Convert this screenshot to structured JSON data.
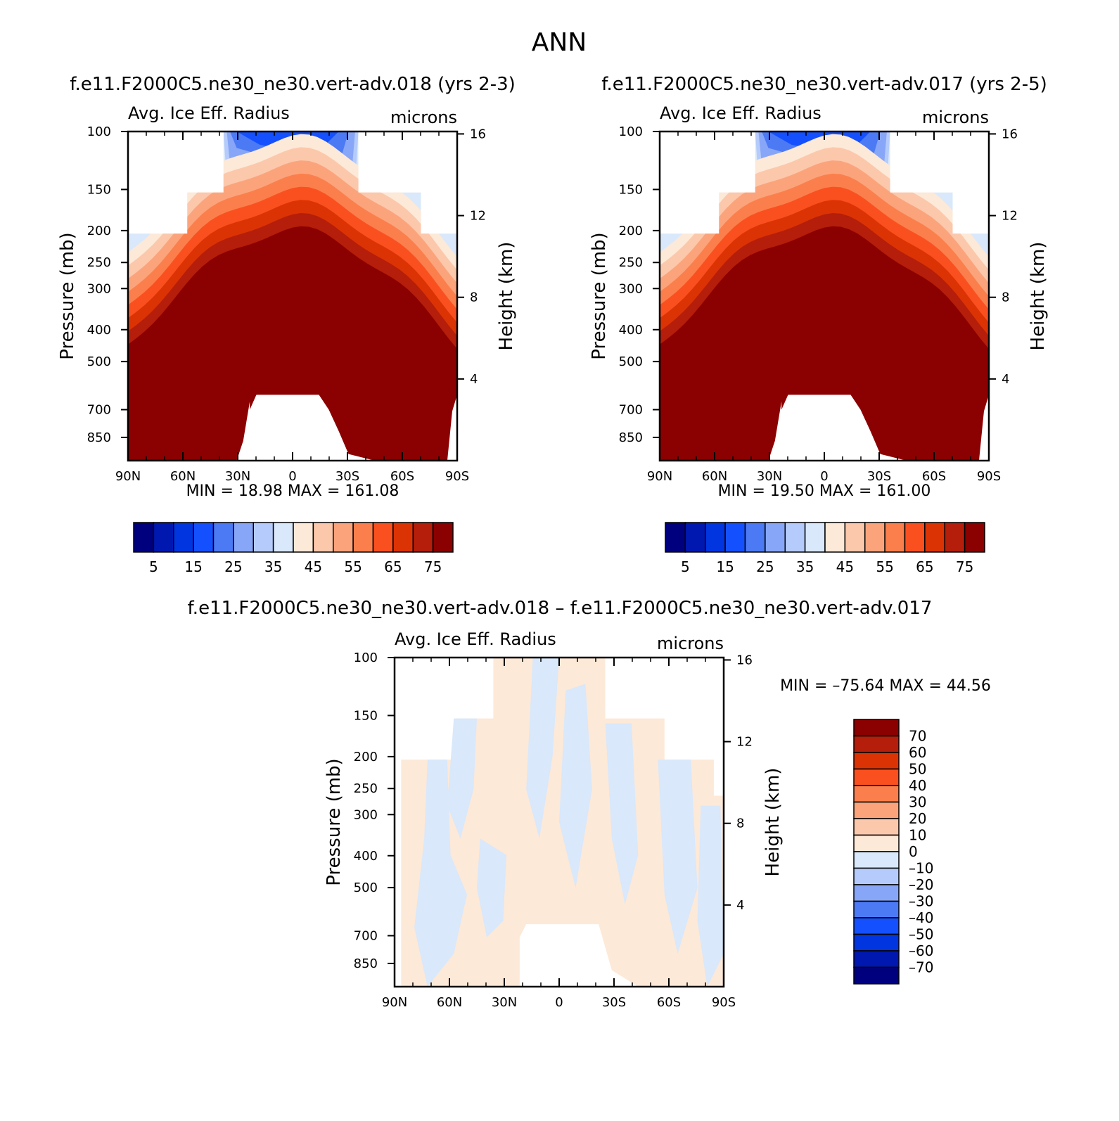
{
  "figure": {
    "title": "ANN"
  },
  "colors": {
    "seq": [
      "#00007f",
      "#0018b0",
      "#0035e0",
      "#1550ff",
      "#4c7af5",
      "#88a6f7",
      "#b5cbfb",
      "#d9e8fb",
      "#fde9d7",
      "#fcc8ab",
      "#fba47c",
      "#fb7f4c",
      "#fa5020",
      "#dc3305",
      "#b41e0a",
      "#8b0000"
    ],
    "diff": [
      "#00007f",
      "#0018b0",
      "#0035e0",
      "#1550ff",
      "#4c7af5",
      "#88a6f7",
      "#b5cbfb",
      "#d9e8fb",
      "#fde9d7",
      "#fcc8ab",
      "#fba47c",
      "#fb7f4c",
      "#fa5020",
      "#dc3305",
      "#b41e0a",
      "#8b0000"
    ]
  },
  "chart_data": [
    {
      "type": "heatmap",
      "title": "f.e11.F2000C5.ne30_ne30.vert-adv.018 (yrs 2-3)",
      "left_label": "Avg. Ice Eff. Radius",
      "right_label": "microns",
      "ylabel": "Pressure (mb)",
      "y2label": "Height (km)",
      "xticks": [
        "90N",
        "60N",
        "30N",
        "0",
        "30S",
        "60S",
        "90S"
      ],
      "yticks": [
        "100",
        "150",
        "200",
        "250",
        "300",
        "400",
        "500",
        "700",
        "850"
      ],
      "y2ticks": [
        "16",
        "12",
        "8",
        "4"
      ],
      "ylim": [
        100,
        1000
      ],
      "log_scale": true,
      "stats_text": "MIN =   18.98   MAX = 161.08",
      "min": 18.98,
      "max": 161.08,
      "colorbar": {
        "labels": [
          "5",
          "15",
          "25",
          "35",
          "45",
          "55",
          "65",
          "75"
        ],
        "levels": [
          5,
          10,
          15,
          20,
          25,
          30,
          35,
          40,
          45,
          50,
          55,
          60,
          65,
          70,
          75
        ]
      }
    },
    {
      "type": "heatmap",
      "title": "f.e11.F2000C5.ne30_ne30.vert-adv.017 (yrs 2-5)",
      "left_label": "Avg. Ice Eff. Radius",
      "right_label": "microns",
      "ylabel": "Pressure (mb)",
      "y2label": "Height (km)",
      "xticks": [
        "90N",
        "60N",
        "30N",
        "0",
        "30S",
        "60S",
        "90S"
      ],
      "yticks": [
        "100",
        "150",
        "200",
        "250",
        "300",
        "400",
        "500",
        "700",
        "850"
      ],
      "y2ticks": [
        "16",
        "12",
        "8",
        "4"
      ],
      "ylim": [
        100,
        1000
      ],
      "log_scale": true,
      "stats_text": "MIN =   19.50   MAX = 161.00",
      "min": 19.5,
      "max": 161.0,
      "colorbar": {
        "labels": [
          "5",
          "15",
          "25",
          "35",
          "45",
          "55",
          "65",
          "75"
        ],
        "levels": [
          5,
          10,
          15,
          20,
          25,
          30,
          35,
          40,
          45,
          50,
          55,
          60,
          65,
          70,
          75
        ]
      }
    },
    {
      "type": "heatmap",
      "title": "f.e11.F2000C5.ne30_ne30.vert-adv.018 – f.e11.F2000C5.ne30_ne30.vert-adv.017",
      "left_label": "Avg. Ice Eff. Radius",
      "right_label": "microns",
      "ylabel": "Pressure (mb)",
      "y2label": "Height (km)",
      "xticks": [
        "90N",
        "60N",
        "30N",
        "0",
        "30S",
        "60S",
        "90S"
      ],
      "yticks": [
        "100",
        "150",
        "200",
        "250",
        "300",
        "400",
        "500",
        "700",
        "850"
      ],
      "y2ticks": [
        "16",
        "12",
        "8",
        "4"
      ],
      "ylim": [
        100,
        1000
      ],
      "log_scale": true,
      "stats_text": "MIN = –75.64   MAX =   44.56",
      "min": -75.64,
      "max": 44.56,
      "colorbar": {
        "labels": [
          "70",
          "60",
          "50",
          "40",
          "30",
          "20",
          "10",
          "0",
          "–10",
          "–20",
          "–30",
          "–40",
          "–50",
          "–60",
          "–70"
        ],
        "levels": [
          -70,
          -60,
          -50,
          -40,
          -30,
          -20,
          -10,
          0,
          10,
          20,
          30,
          40,
          50,
          60,
          70
        ]
      }
    }
  ]
}
